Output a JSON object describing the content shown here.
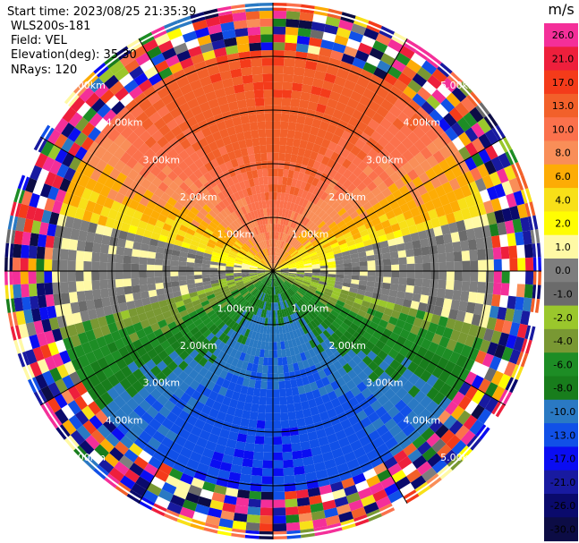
{
  "info": {
    "start_time": "Start time: 2023/08/25 21:35:39",
    "instrument": "WLS200s-181",
    "field": "Field: VEL",
    "elevation": "Elevation(deg): 35.30",
    "nrays": "NRays: 120"
  },
  "chart_data": {
    "type": "heatmap",
    "subtype": "radar-ppi",
    "field": "VEL",
    "units": "m/s",
    "n_rays": 120,
    "elevation_deg": 35.3,
    "range_km": [
      0,
      5.0
    ],
    "ring_labels": [
      "1.00km",
      "2.00km",
      "3.00km",
      "4.00km",
      "5.00km"
    ],
    "spokes_deg": [
      0,
      30,
      60,
      90,
      120,
      150,
      180,
      210,
      240,
      270,
      300,
      330
    ],
    "colorbar": {
      "ticks": [
        "26.0",
        "21.0",
        "17.0",
        "13.0",
        "10.0",
        "8.0",
        "6.0",
        "4.0",
        "2.0",
        "1.0",
        "0.0",
        "-1.0",
        "-2.0",
        "-4.0",
        "-6.0",
        "-8.0",
        "-10.0",
        "-13.0",
        "-17.0",
        "-21.0",
        "-26.0",
        "-30.0"
      ],
      "colors": [
        "#f42f99",
        "#ee1f3c",
        "#f43b1a",
        "#f2602a",
        "#fb714c",
        "#f98e58",
        "#fdac05",
        "#f8e018",
        "#fffd02",
        "#fff9a5",
        "#7e7e7e",
        "#6b6b6b",
        "#9ac72c",
        "#799833",
        "#1d8d25",
        "#187d1c",
        "#2a79c3",
        "#1150e7",
        "#0a0df2",
        "#181aa0",
        "#0a0a6c",
        "#0c0c45"
      ]
    },
    "velocity_pattern": {
      "near_range_positive_sector": "north",
      "near_range_negative_sector": "south",
      "valid_range_km": 4.1,
      "noisy_beyond_km": 4.1
    }
  }
}
